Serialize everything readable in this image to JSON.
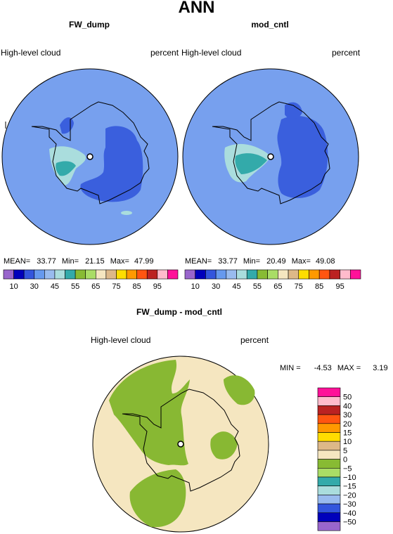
{
  "page": {
    "title": "ANN"
  },
  "panels": [
    {
      "id": "left",
      "title": "FW_dump",
      "variable": "High-level cloud",
      "units": "percent",
      "stats": {
        "mean_label": "MEAN=",
        "mean": "33.77",
        "min_label": "Min=",
        "min": "21.15",
        "max_label": "Max=",
        "max": "47.99"
      }
    },
    {
      "id": "right",
      "title": "mod_cntl",
      "variable": "High-level cloud",
      "units": "percent",
      "stats": {
        "mean_label": "MEAN=",
        "mean": "33.77",
        "min_label": "Min=",
        "min": "20.49",
        "max_label": "Max=",
        "max": "49.08"
      }
    }
  ],
  "colorbar_top": {
    "labels": [
      "10",
      "30",
      "45",
      "55",
      "65",
      "75",
      "85",
      "95"
    ],
    "colors": [
      "#9966cc",
      "#0000bb",
      "#3355dd",
      "#6699ee",
      "#99bbee",
      "#aadddd",
      "#33aaaa",
      "#88bb33",
      "#aadd66",
      "#f5e6c0",
      "#ddb888",
      "#ffdd00",
      "#ff9900",
      "#ff5511",
      "#bb2222",
      "#ffbbcc",
      "#ff1199"
    ]
  },
  "diff_panel": {
    "title": "FW_dump - mod_cntl",
    "variable": "High-level cloud",
    "units": "percent",
    "stats": {
      "min_label": "MIN =",
      "min": "-4.53",
      "max_label": "MAX =",
      "max": "3.19"
    }
  },
  "colorbar_diff": {
    "labels": [
      "50",
      "40",
      "30",
      "20",
      "15",
      "10",
      "5",
      "0",
      "−5",
      "−10",
      "−15",
      "−20",
      "−30",
      "−40",
      "−50"
    ],
    "colors": [
      "#ff1199",
      "#ffbbcc",
      "#bb2222",
      "#ff5511",
      "#ff9900",
      "#ffdd00",
      "#ddb888",
      "#f5e6c0",
      "#88bb33",
      "#aadd66",
      "#33aaaa",
      "#aadddd",
      "#99bbee",
      "#3355dd",
      "#0000bb",
      "#9966cc"
    ]
  },
  "map_colors": {
    "ocean_blue": "#77a0ee",
    "dark_blue": "#3a5fdd",
    "light_cyan": "#aadddd",
    "teal": "#33aaaa",
    "diff_bg": "#f5e6c0",
    "diff_green": "#88b833"
  }
}
